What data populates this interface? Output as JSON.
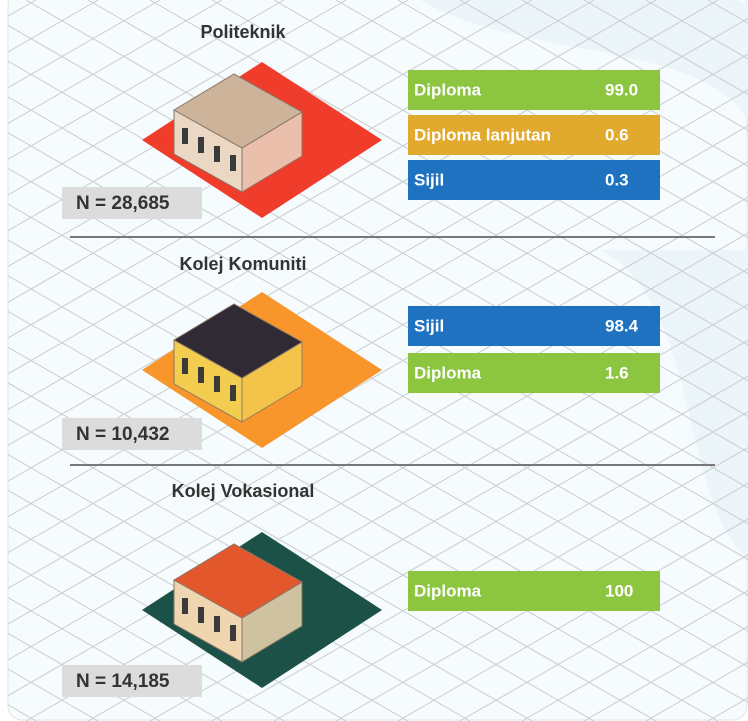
{
  "sections": [
    {
      "title": "Politeknik",
      "n": "N = 28,685",
      "base_color": "#f03c2b",
      "items": [
        {
          "label": "Diploma",
          "value": "99.0",
          "color": "#8cc540"
        },
        {
          "label": "Diploma lanjutan",
          "value": "0.6",
          "color": "#e1a92e"
        },
        {
          "label": "Sijil",
          "value": "0.3",
          "color": "#1e72c0"
        }
      ]
    },
    {
      "title": "Kolej Komuniti",
      "n": "N = 10,432",
      "base_color": "#f8962c",
      "items": [
        {
          "label": "Sijil",
          "value": "98.4",
          "color": "#1e72c0"
        },
        {
          "label": "Diploma",
          "value": "1.6",
          "color": "#8cc540"
        }
      ]
    },
    {
      "title": "Kolej Vokasional",
      "n": "N = 14,185",
      "base_color": "#1c5148",
      "items": [
        {
          "label": "Diploma",
          "value": "100",
          "color": "#8cc540"
        }
      ]
    }
  ]
}
